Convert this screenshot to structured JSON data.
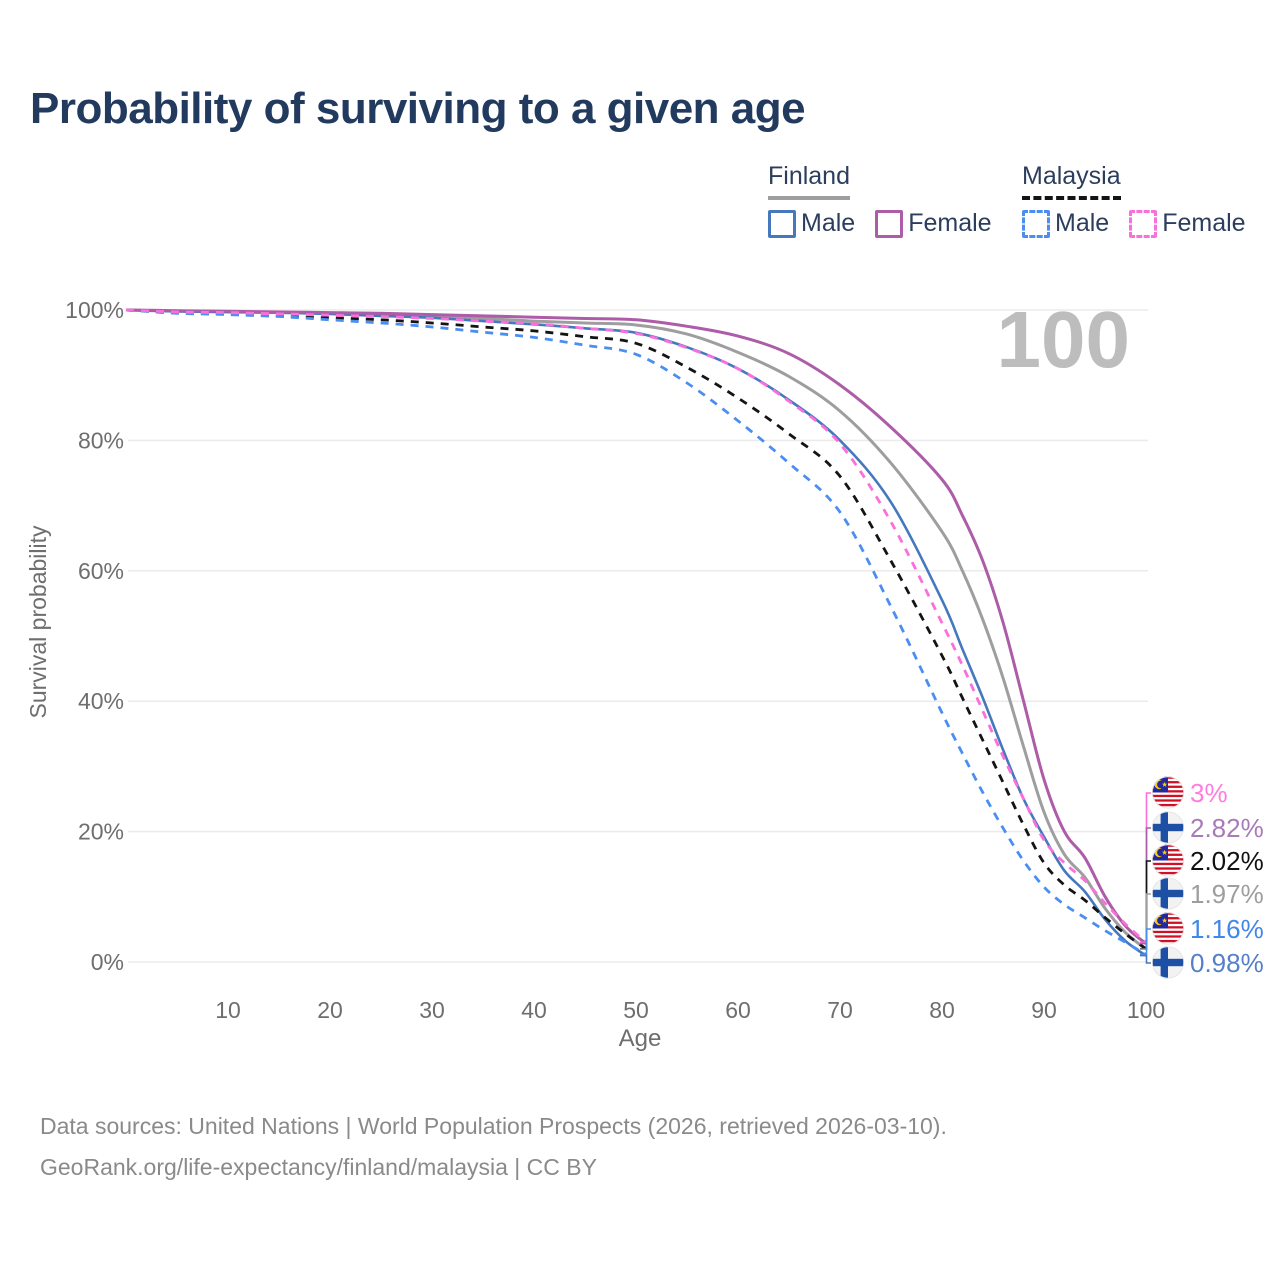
{
  "title": "Probability of surviving to a given age",
  "watermark_age": "100",
  "legend": {
    "groups": [
      {
        "name": "Finland",
        "style": "solid",
        "items": [
          {
            "label": "Male"
          },
          {
            "label": "Female"
          }
        ]
      },
      {
        "name": "Malaysia",
        "style": "dashed",
        "items": [
          {
            "label": "Male"
          },
          {
            "label": "Female"
          }
        ]
      }
    ]
  },
  "axes": {
    "y_title": "Survival probability",
    "x_title": "Age",
    "y_ticks": [
      "100%",
      "80%",
      "60%",
      "40%",
      "20%",
      "0%"
    ],
    "x_ticks": [
      "10",
      "20",
      "30",
      "40",
      "50",
      "60",
      "70",
      "80",
      "90",
      "100"
    ]
  },
  "chart_data": {
    "type": "line",
    "title": "Probability of surviving to a given age",
    "xlabel": "Age",
    "ylabel": "Survival probability",
    "xlim": [
      0,
      100
    ],
    "ylim": [
      0,
      100
    ],
    "grid": "horizontal-only",
    "x": [
      0,
      5,
      10,
      15,
      20,
      25,
      30,
      35,
      40,
      45,
      50,
      55,
      60,
      65,
      70,
      75,
      80,
      82,
      84,
      86,
      88,
      90,
      92,
      94,
      96,
      98,
      100
    ],
    "y_ticks_pct": [
      100,
      80,
      60,
      40,
      20,
      0
    ],
    "x_ticks_val": [
      10,
      20,
      30,
      40,
      50,
      60,
      70,
      80,
      90,
      100
    ],
    "series": [
      {
        "key": "fi_total",
        "name": "Finland — Total",
        "country": "Finland",
        "sex": "Total",
        "style": "solid",
        "color_key": "fi_total",
        "width": 3,
        "values": [
          100,
          99.8,
          99.7,
          99.6,
          99.5,
          99.3,
          99.0,
          98.7,
          98.3,
          98.0,
          97.7,
          96.3,
          93.5,
          89.8,
          84.5,
          76.5,
          66.0,
          60.0,
          52.5,
          43.5,
          33.0,
          23.0,
          16.5,
          13.0,
          8.2,
          4.5,
          1.97
        ]
      },
      {
        "key": "fi_male",
        "name": "Finland — Male",
        "country": "Finland",
        "sex": "Male",
        "style": "solid",
        "color_key": "fi_male",
        "width": 2.6,
        "values": [
          100,
          99.8,
          99.7,
          99.6,
          99.4,
          99.1,
          98.8,
          98.3,
          97.8,
          97.2,
          96.5,
          94.3,
          91.0,
          86.2,
          80.0,
          70.5,
          55.5,
          48.0,
          40.5,
          32.5,
          25.0,
          19.2,
          14.0,
          10.8,
          6.5,
          3.2,
          0.98
        ]
      },
      {
        "key": "fi_female",
        "name": "Finland — Female",
        "country": "Finland",
        "sex": "Female",
        "style": "solid",
        "color_key": "fi_female",
        "width": 3,
        "values": [
          100,
          99.9,
          99.8,
          99.7,
          99.6,
          99.5,
          99.3,
          99.1,
          98.9,
          98.7,
          98.5,
          97.5,
          96.0,
          93.3,
          88.5,
          82.0,
          74.0,
          68.5,
          61.5,
          52.0,
          40.0,
          28.0,
          20.0,
          16.0,
          10.0,
          5.5,
          2.82
        ]
      },
      {
        "key": "my_total",
        "name": "Malaysia — Total",
        "country": "Malaysia",
        "sex": "Total",
        "style": "dashed",
        "color_key": "my_total",
        "width": 2.8,
        "values": [
          100,
          99.6,
          99.4,
          99.1,
          98.8,
          98.5,
          98.0,
          97.4,
          96.8,
          95.9,
          94.9,
          91.2,
          86.5,
          81.0,
          74.5,
          61.5,
          47.0,
          40.5,
          34.0,
          27.5,
          21.0,
          15.2,
          11.8,
          9.5,
          6.8,
          4.3,
          2.02
        ]
      },
      {
        "key": "my_male",
        "name": "Malaysia — Male",
        "country": "Malaysia",
        "sex": "Male",
        "style": "dashed",
        "color_key": "my_male",
        "width": 2.8,
        "values": [
          100,
          99.5,
          99.3,
          99.0,
          98.5,
          98.0,
          97.4,
          96.6,
          95.8,
          94.6,
          93.2,
          88.8,
          83.0,
          76.5,
          69.0,
          54.5,
          38.2,
          32.0,
          26.0,
          20.5,
          15.5,
          11.5,
          8.8,
          6.8,
          4.8,
          3.0,
          1.16
        ]
      },
      {
        "key": "my_female",
        "name": "Malaysia — Female",
        "country": "Malaysia",
        "sex": "Female",
        "style": "dashed",
        "color_key": "my_female",
        "width": 2.8,
        "values": [
          100,
          99.7,
          99.6,
          99.4,
          99.2,
          99.0,
          98.7,
          98.3,
          97.9,
          97.2,
          96.4,
          94.2,
          91.0,
          86.0,
          79.5,
          67.5,
          52.0,
          45.5,
          38.5,
          31.5,
          25.0,
          18.7,
          15.2,
          12.5,
          9.0,
          5.8,
          3.0
        ]
      }
    ],
    "end_labels": [
      {
        "series_key": "my_female",
        "label": "3%",
        "flag": "malaysia-flag",
        "flag_ref": "#flag-malaysia",
        "color": "#ff7ce0"
      },
      {
        "series_key": "fi_female",
        "label": "2.82%",
        "flag": "finland-flag",
        "flag_ref": "#flag-finland",
        "color": "#a87ab8"
      },
      {
        "series_key": "my_total",
        "label": "2.02%",
        "flag": "malaysia-flag",
        "flag_ref": "#flag-malaysia",
        "color": "#111111"
      },
      {
        "series_key": "fi_total",
        "label": "1.97%",
        "flag": "finland-flag",
        "flag_ref": "#flag-finland",
        "color": "#9e9e9e"
      },
      {
        "series_key": "my_male",
        "label": "1.16%",
        "flag": "malaysia-flag",
        "flag_ref": "#flag-malaysia",
        "color": "#4186ea"
      },
      {
        "series_key": "fi_male",
        "label": "0.98%",
        "flag": "finland-flag",
        "flag_ref": "#flag-finland",
        "color": "#567fc9"
      }
    ]
  },
  "source": {
    "line1": "Data sources: United Nations | World Population Prospects (2026, retrieved 2026-03-10).",
    "line2": "GeoRank.org/life-expectancy/finland/malaysia | CC BY"
  },
  "colors": {
    "fi_male": "#4678bd",
    "fi_female": "#ad5ca8",
    "fi_total": "#9e9e9e",
    "my_male": "#4a8ef2",
    "my_female": "#fb6fdc",
    "my_total": "#141414",
    "title_text": "#213a5e",
    "legend_text": "#2c3e5d",
    "axis_text": "#6e6e6e",
    "muted_text": "#8a8a8a",
    "watermark": "#bdbdbd",
    "grid": "#ebebeb"
  }
}
